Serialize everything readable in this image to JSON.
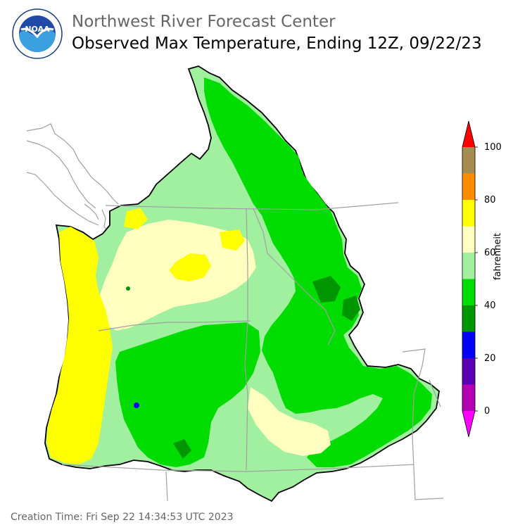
{
  "header": {
    "org_title": "Northwest River Forecast Center",
    "map_title": "Observed Max Temperature, Ending 12Z, 09/22/23"
  },
  "logo": {
    "text": "NOAA",
    "ring_text": "NATIONAL OCEANIC AND ATMOSPHERIC ADMINISTRATION · U.S. DEPARTMENT OF COMMERCE",
    "icon": "noaa-logo"
  },
  "legend": {
    "unit_label": "fahrenheit",
    "ticks": [
      "100",
      "80",
      "60",
      "40",
      "20",
      "0"
    ],
    "bins": [
      {
        "range": "90-100",
        "color": "#a68c50"
      },
      {
        "range": "80-90",
        "color": "#ff8c00"
      },
      {
        "range": "70-80",
        "color": "#ffff00"
      },
      {
        "range": "60-70",
        "color": "#ffffc0"
      },
      {
        "range": "50-60",
        "color": "#a0f0a0"
      },
      {
        "range": "40-50",
        "color": "#00dc00"
      },
      {
        "range": "30-40",
        "color": "#009600"
      },
      {
        "range": "20-30",
        "color": "#0000ff"
      },
      {
        "range": "10-20",
        "color": "#5a00b4"
      },
      {
        "range": "0-10",
        "color": "#b400b4"
      }
    ],
    "over_color": "#ff0000",
    "under_color": "#ff00ff"
  },
  "footer": {
    "creation_time": "Creation Time: Fri Sep 22 14:34:53 UTC 2023"
  }
}
